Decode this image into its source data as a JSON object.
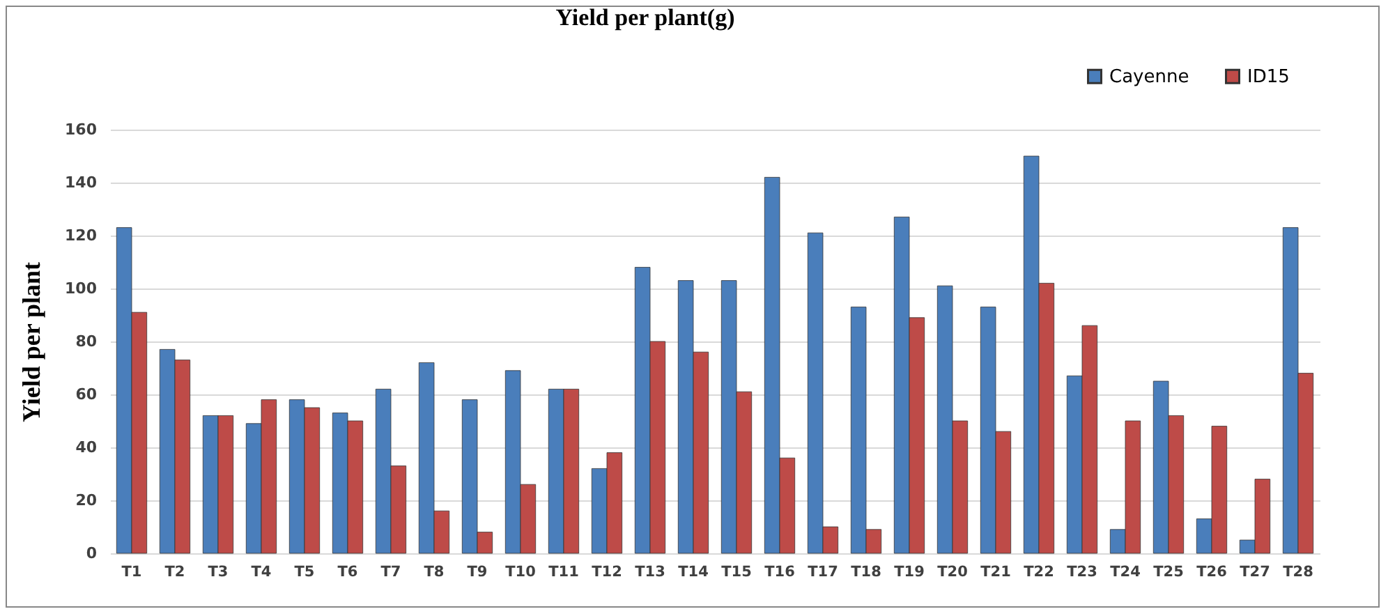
{
  "chart_data": {
    "type": "bar",
    "title": "Yield per plant(g)",
    "ylabel": "Yield per plant",
    "categories": [
      "T1",
      "T2",
      "T3",
      "T4",
      "T5",
      "T6",
      "T7",
      "T8",
      "T9",
      "T10",
      "T11",
      "T12",
      "T13",
      "T14",
      "T15",
      "T16",
      "T17",
      "T18",
      "T19",
      "T20",
      "T21",
      "T22",
      "T23",
      "T24",
      "T25",
      "T26",
      "T27",
      "T28"
    ],
    "series": [
      {
        "name": "Cayenne",
        "color": "#4a7ebb",
        "values": [
          123,
          77,
          52,
          49,
          58,
          53,
          62,
          72,
          58,
          69,
          62,
          32,
          108,
          103,
          103,
          142,
          121,
          93,
          127,
          101,
          93,
          150,
          67,
          9,
          65,
          13,
          5,
          123
        ]
      },
      {
        "name": "ID15",
        "color": "#be4b48",
        "values": [
          91,
          73,
          52,
          58,
          55,
          50,
          33,
          16,
          8,
          26,
          62,
          38,
          80,
          76,
          61,
          36,
          10,
          9,
          89,
          50,
          46,
          102,
          86,
          50,
          52,
          48,
          28,
          68
        ]
      }
    ],
    "ylim": [
      0,
      160
    ],
    "yticks": [
      0,
      20,
      40,
      60,
      80,
      100,
      120,
      140,
      160
    ],
    "grid": "y",
    "legend": "top right"
  }
}
